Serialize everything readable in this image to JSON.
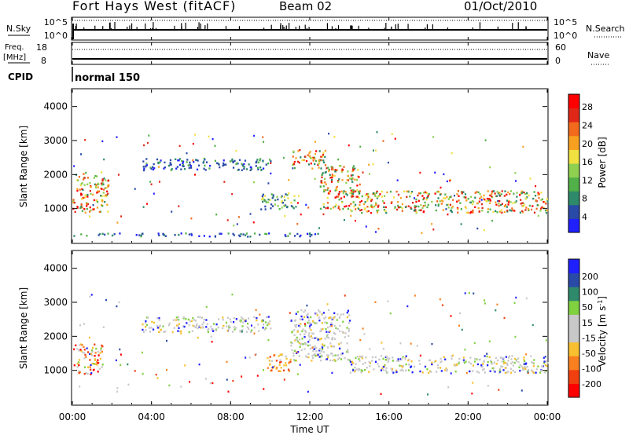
{
  "header": {
    "station": "Fort Hays West (fitACF)",
    "beam": "Beam 02",
    "date": "01/Oct/2010"
  },
  "strip1": {
    "left_label": "N.Sky",
    "right_label": "N.Search",
    "left_ticks": [
      "10^5",
      "10^0"
    ],
    "right_ticks": [
      "10^5",
      "10^0"
    ]
  },
  "strip2": {
    "left_label_1": "Freq.",
    "left_label_2": "[MHz]",
    "right_label": "Nave",
    "left_ticks": [
      "18",
      "8"
    ],
    "right_ticks": [
      "60",
      "0"
    ]
  },
  "cpid": {
    "label": "CPID",
    "scan": "normal 150"
  },
  "x_axis": {
    "label": "Time UT",
    "ticks": [
      "00:00",
      "04:00",
      "08:00",
      "12:00",
      "16:00",
      "20:00",
      "00:00"
    ]
  },
  "colors": {
    "power": [
      "#2020ff",
      "#2a4aa8",
      "#2e8a6a",
      "#52b048",
      "#8fd050",
      "#f0e040",
      "#f8a020",
      "#f26a1c",
      "#e02818",
      "#ff0000"
    ],
    "velocity": [
      "#ff0000",
      "#f04010",
      "#f88020",
      "#f8c030",
      "#c8c8c8",
      "#c8c8c8",
      "#80d040",
      "#2e8a6a",
      "#2a4aa8",
      "#2020ff"
    ]
  },
  "chart_data": [
    {
      "type": "heatmap",
      "title": "",
      "xlabel": "",
      "ylabel": "Slant Range [km]",
      "xlim": [
        0,
        24
      ],
      "ylim": [
        0,
        4500
      ],
      "y_ticks": [
        "1000",
        "2000",
        "3000",
        "4000"
      ],
      "colorbar_label": "Power [dB]",
      "colorbar_ticks": [
        "4",
        "8",
        "12",
        "16",
        "20",
        "24",
        "28"
      ],
      "colorbar_range": [
        0,
        30
      ],
      "grid": false,
      "regions": [
        {
          "t0": 0.0,
          "t1": 1.8,
          "r0": 900,
          "r1": 2100,
          "level": "high"
        },
        {
          "t0": 3.5,
          "t1": 10.0,
          "r0": 2150,
          "r1": 2500,
          "level": "low"
        },
        {
          "t0": 9.5,
          "t1": 11.3,
          "r0": 1000,
          "r1": 1500,
          "level": "medium"
        },
        {
          "t0": 11.0,
          "t1": 12.8,
          "r0": 2200,
          "r1": 2750,
          "level": "high"
        },
        {
          "t0": 12.5,
          "t1": 14.5,
          "r0": 1000,
          "r1": 2300,
          "level": "high"
        },
        {
          "t0": 14.0,
          "t1": 24.0,
          "r0": 900,
          "r1": 1550,
          "level": "high"
        },
        {
          "t0": 0.0,
          "t1": 12.5,
          "r0": 200,
          "r1": 300,
          "level": "low"
        }
      ]
    },
    {
      "type": "heatmap",
      "title": "",
      "xlabel": "Time UT",
      "ylabel": "Slant Range [km]",
      "xlim": [
        0,
        24
      ],
      "ylim": [
        0,
        4500
      ],
      "y_ticks": [
        "1000",
        "2000",
        "3000",
        "4000"
      ],
      "colorbar_label": "Velocity [m s^-1]",
      "colorbar_ticks": [
        "200",
        "100",
        "50",
        "15",
        "-15",
        "-50",
        "-100",
        "-200"
      ],
      "colorbar_range": [
        -250,
        250
      ],
      "grid": false,
      "regions": [
        {
          "t0": 0.0,
          "t1": 1.5,
          "r0": 900,
          "r1": 1800,
          "level": "mixed-negative"
        },
        {
          "t0": 3.5,
          "t1": 10.0,
          "r0": 2150,
          "r1": 2600,
          "level": "near-zero"
        },
        {
          "t0": 9.7,
          "t1": 11.2,
          "r0": 1000,
          "r1": 1500,
          "level": "negative"
        },
        {
          "t0": 11.0,
          "t1": 14.0,
          "r0": 1300,
          "r1": 2800,
          "level": "near-zero"
        },
        {
          "t0": 14.0,
          "t1": 24.0,
          "r0": 950,
          "r1": 1450,
          "level": "near-zero"
        }
      ]
    }
  ]
}
